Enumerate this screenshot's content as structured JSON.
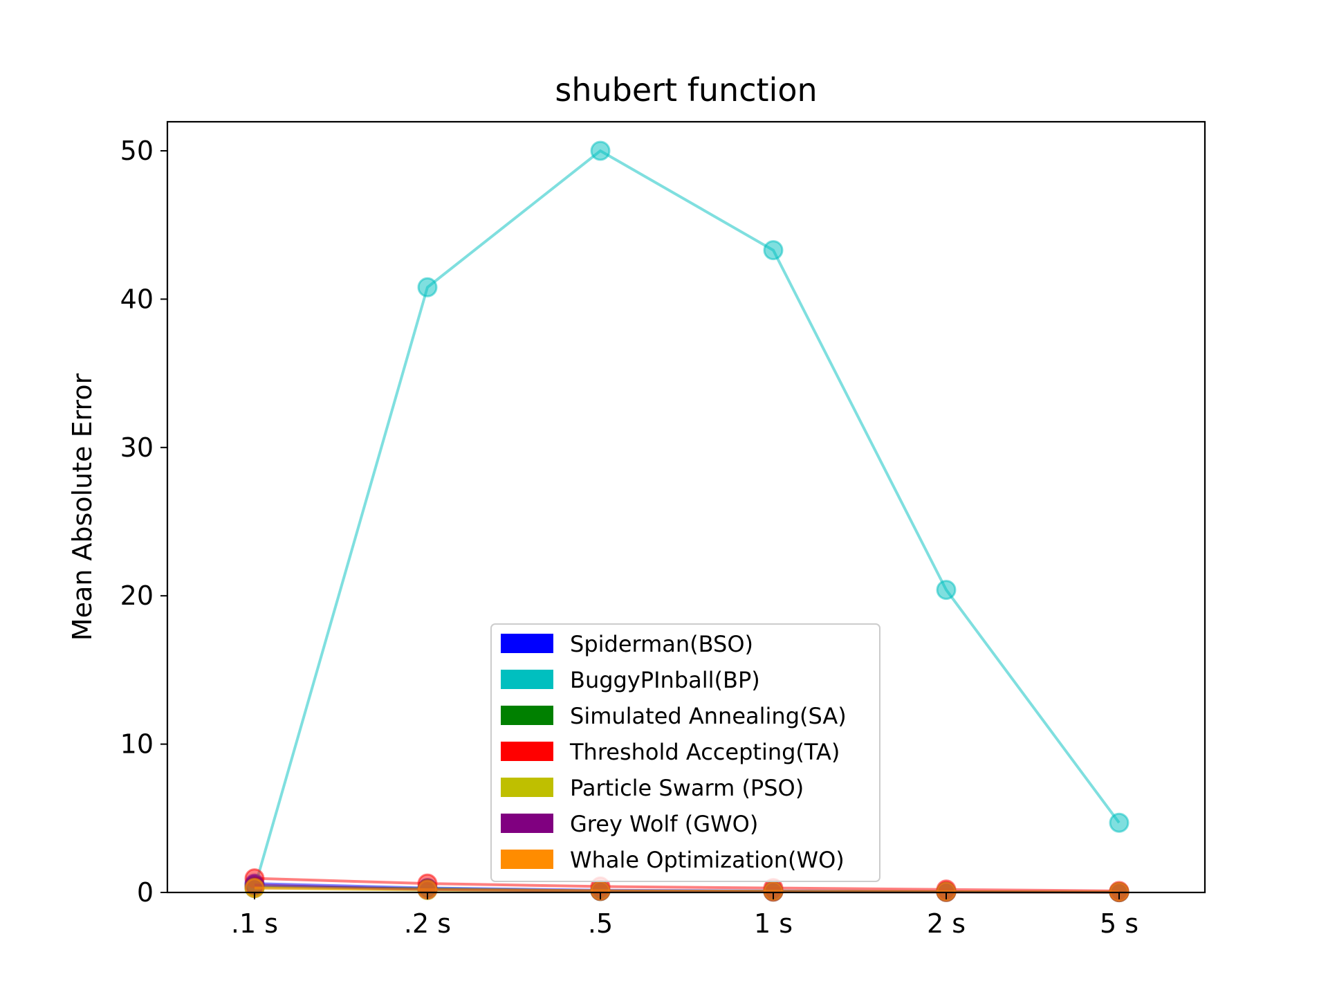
{
  "chart_data": {
    "type": "line",
    "title": "shubert function",
    "xlabel": "",
    "ylabel": "Mean Absolute Error",
    "categories": [
      ".1 s",
      ".2 s",
      ".5",
      "1 s",
      "2 s",
      "5 s"
    ],
    "ylim": [
      0,
      52
    ],
    "yticks": [
      0,
      10,
      20,
      30,
      40,
      50
    ],
    "grid": false,
    "legend_position": "lower-center",
    "series": [
      {
        "name": "Spiderman(BSO)",
        "color": "#0000ff",
        "values": [
          0.6,
          0.3,
          0.15,
          0.1,
          0.05,
          0.02
        ]
      },
      {
        "name": "BuggyPInball(BP)",
        "color": "#00bfbf",
        "values": [
          0.3,
          40.8,
          50.0,
          43.3,
          20.4,
          4.7
        ]
      },
      {
        "name": "Simulated Annealing(SA)",
        "color": "#008000",
        "values": [
          0.4,
          0.25,
          0.1,
          0.08,
          0.05,
          0.03
        ]
      },
      {
        "name": "Threshold Accepting(TA)",
        "color": "#ff0000",
        "values": [
          0.95,
          0.6,
          0.4,
          0.3,
          0.2,
          0.1
        ]
      },
      {
        "name": "Particle Swarm (PSO)",
        "color": "#bfbf00",
        "values": [
          0.3,
          0.15,
          0.1,
          0.05,
          0.03,
          0.02
        ]
      },
      {
        "name": "Grey Wolf (GWO)",
        "color": "#800080",
        "values": [
          0.5,
          0.2,
          0.1,
          0.05,
          0.03,
          0.02
        ]
      },
      {
        "name": "Whale Optimization(WO)",
        "color": "#ff8c00",
        "values": [
          0.3,
          0.2,
          0.12,
          0.08,
          0.05,
          0.03
        ]
      }
    ]
  }
}
